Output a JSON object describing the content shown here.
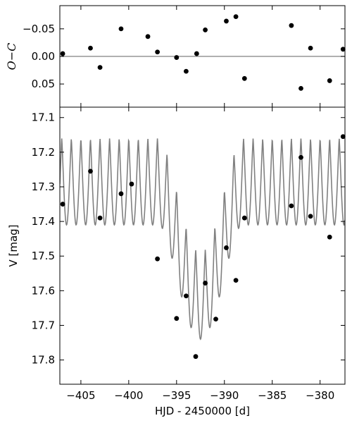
{
  "chart_data": [
    {
      "type": "scatter",
      "panel": "top",
      "xlabel": "",
      "ylabel": "O−C",
      "xlim": [
        -407.2,
        -377.4
      ],
      "ylim": [
        0.092,
        -0.092
      ],
      "y_inverted": true,
      "xticks": [
        -405,
        -400,
        -395,
        -390,
        -385,
        -380
      ],
      "yticks": [
        -0.05,
        0.0,
        0.05
      ],
      "ytick_labels": [
        "−0.05",
        "0.00",
        "0.05"
      ],
      "reference_line": 0.0,
      "grid": false,
      "series": [
        {
          "points": [
            [
              -406.9,
              -0.005
            ],
            [
              -404.0,
              -0.015
            ],
            [
              -403.0,
              0.02
            ],
            [
              -400.8,
              -0.05
            ],
            [
              -398.0,
              -0.036
            ],
            [
              -397.0,
              -0.008
            ],
            [
              -395.0,
              0.002
            ],
            [
              -394.0,
              0.027
            ],
            [
              -392.9,
              -0.005
            ],
            [
              -392.0,
              -0.048
            ],
            [
              -389.8,
              -0.064
            ],
            [
              -388.8,
              -0.072
            ],
            [
              -387.9,
              0.04
            ],
            [
              -383.0,
              -0.056
            ],
            [
              -382.0,
              0.058
            ],
            [
              -381.0,
              -0.015
            ],
            [
              -379.0,
              0.044
            ],
            [
              -377.6,
              -0.013
            ]
          ]
        }
      ]
    },
    {
      "type": "line",
      "panel": "bottom",
      "xlabel": "HJD - 2450000 [d]",
      "ylabel": "V [mag]",
      "xlim": [
        -407.2,
        -377.4
      ],
      "ylim": [
        17.87,
        17.07
      ],
      "y_inverted": true,
      "xticks": [
        -405,
        -400,
        -395,
        -390,
        -385,
        -380
      ],
      "yticks": [
        17.1,
        17.2,
        17.3,
        17.4,
        17.5,
        17.6,
        17.7,
        17.8
      ],
      "grid": false,
      "model_curve": {
        "description_free": true,
        "oscillation_period": 1.0,
        "phase_peak_x": -406.0,
        "base_peak": 17.16,
        "base_trough": 17.41,
        "dip_center": -392.5,
        "dip_halfwidth": 4.3,
        "dip_depth": 0.33,
        "dip_shape_exponent": 1.6,
        "asymmetry_right_shift": 0.0
      },
      "series": [
        {
          "points": [
            [
              -406.9,
              17.35
            ],
            [
              -404.0,
              17.255
            ],
            [
              -403.0,
              17.39
            ],
            [
              -400.8,
              17.32
            ],
            [
              -399.7,
              17.292
            ],
            [
              -397.0,
              17.508
            ],
            [
              -395.0,
              17.68
            ],
            [
              -394.0,
              17.615
            ],
            [
              -393.0,
              17.79
            ],
            [
              -392.0,
              17.578
            ],
            [
              -390.9,
              17.682
            ],
            [
              -389.8,
              17.476
            ],
            [
              -388.8,
              17.57
            ],
            [
              -387.9,
              17.39
            ],
            [
              -383.0,
              17.355
            ],
            [
              -382.0,
              17.215
            ],
            [
              -381.0,
              17.385
            ],
            [
              -379.0,
              17.445
            ],
            [
              -377.6,
              17.155
            ]
          ]
        }
      ]
    }
  ],
  "colors": {
    "model_line": "#808080",
    "reference_line": "#808080",
    "points": "#000000",
    "axes": "#000000"
  }
}
